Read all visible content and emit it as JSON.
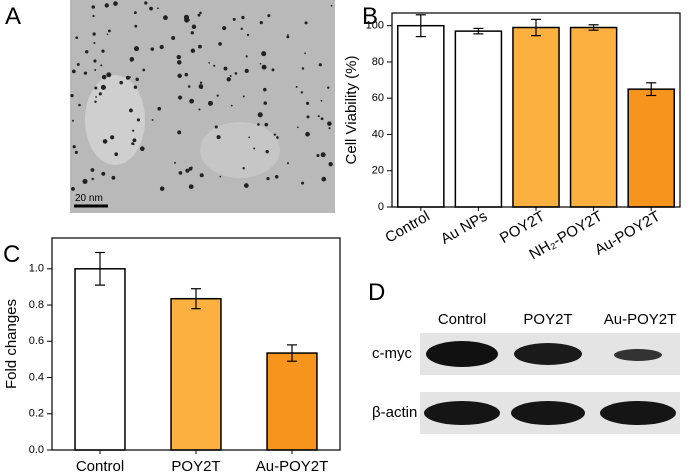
{
  "panel_labels": [
    "A",
    "B",
    "C",
    "D"
  ],
  "tem": {
    "scale_bar": "20 nm"
  },
  "blot": {
    "columns": [
      "Control",
      "POY2T",
      "Au-POY2T"
    ],
    "rows": [
      "c-myc",
      "β-actin"
    ]
  },
  "chart_data": [
    {
      "type": "bar",
      "y_label": "Cell Viability (%)",
      "categories": [
        "Control",
        "Au NPs",
        "POY2T",
        "NH₂-POY2T",
        "Au-POY2T"
      ],
      "values": [
        100,
        97,
        99,
        99,
        65
      ],
      "errors": [
        6,
        1.5,
        4.5,
        1.5,
        3.5
      ],
      "colors": [
        "#ffffff",
        "#ffffff",
        "#fbb040",
        "#fbb040",
        "#f7941d"
      ],
      "ylim": [
        0,
        107
      ],
      "yticks": [
        0,
        20,
        40,
        60,
        80,
        100
      ]
    },
    {
      "type": "bar",
      "y_label": "Fold changes",
      "categories": [
        "Control",
        "POY2T",
        "Au-POY2T"
      ],
      "values": [
        1.0,
        0.835,
        0.535
      ],
      "errors": [
        0.09,
        0.055,
        0.045
      ],
      "colors": [
        "#ffffff",
        "#fbb040",
        "#f7941d"
      ],
      "ylim": [
        0,
        1.17
      ],
      "yticks": [
        {
          "value": 0,
          "label": "0.0"
        },
        0.2,
        0.4,
        0.6,
        0.8,
        {
          "value": 1,
          "label": "1.0"
        }
      ]
    }
  ]
}
